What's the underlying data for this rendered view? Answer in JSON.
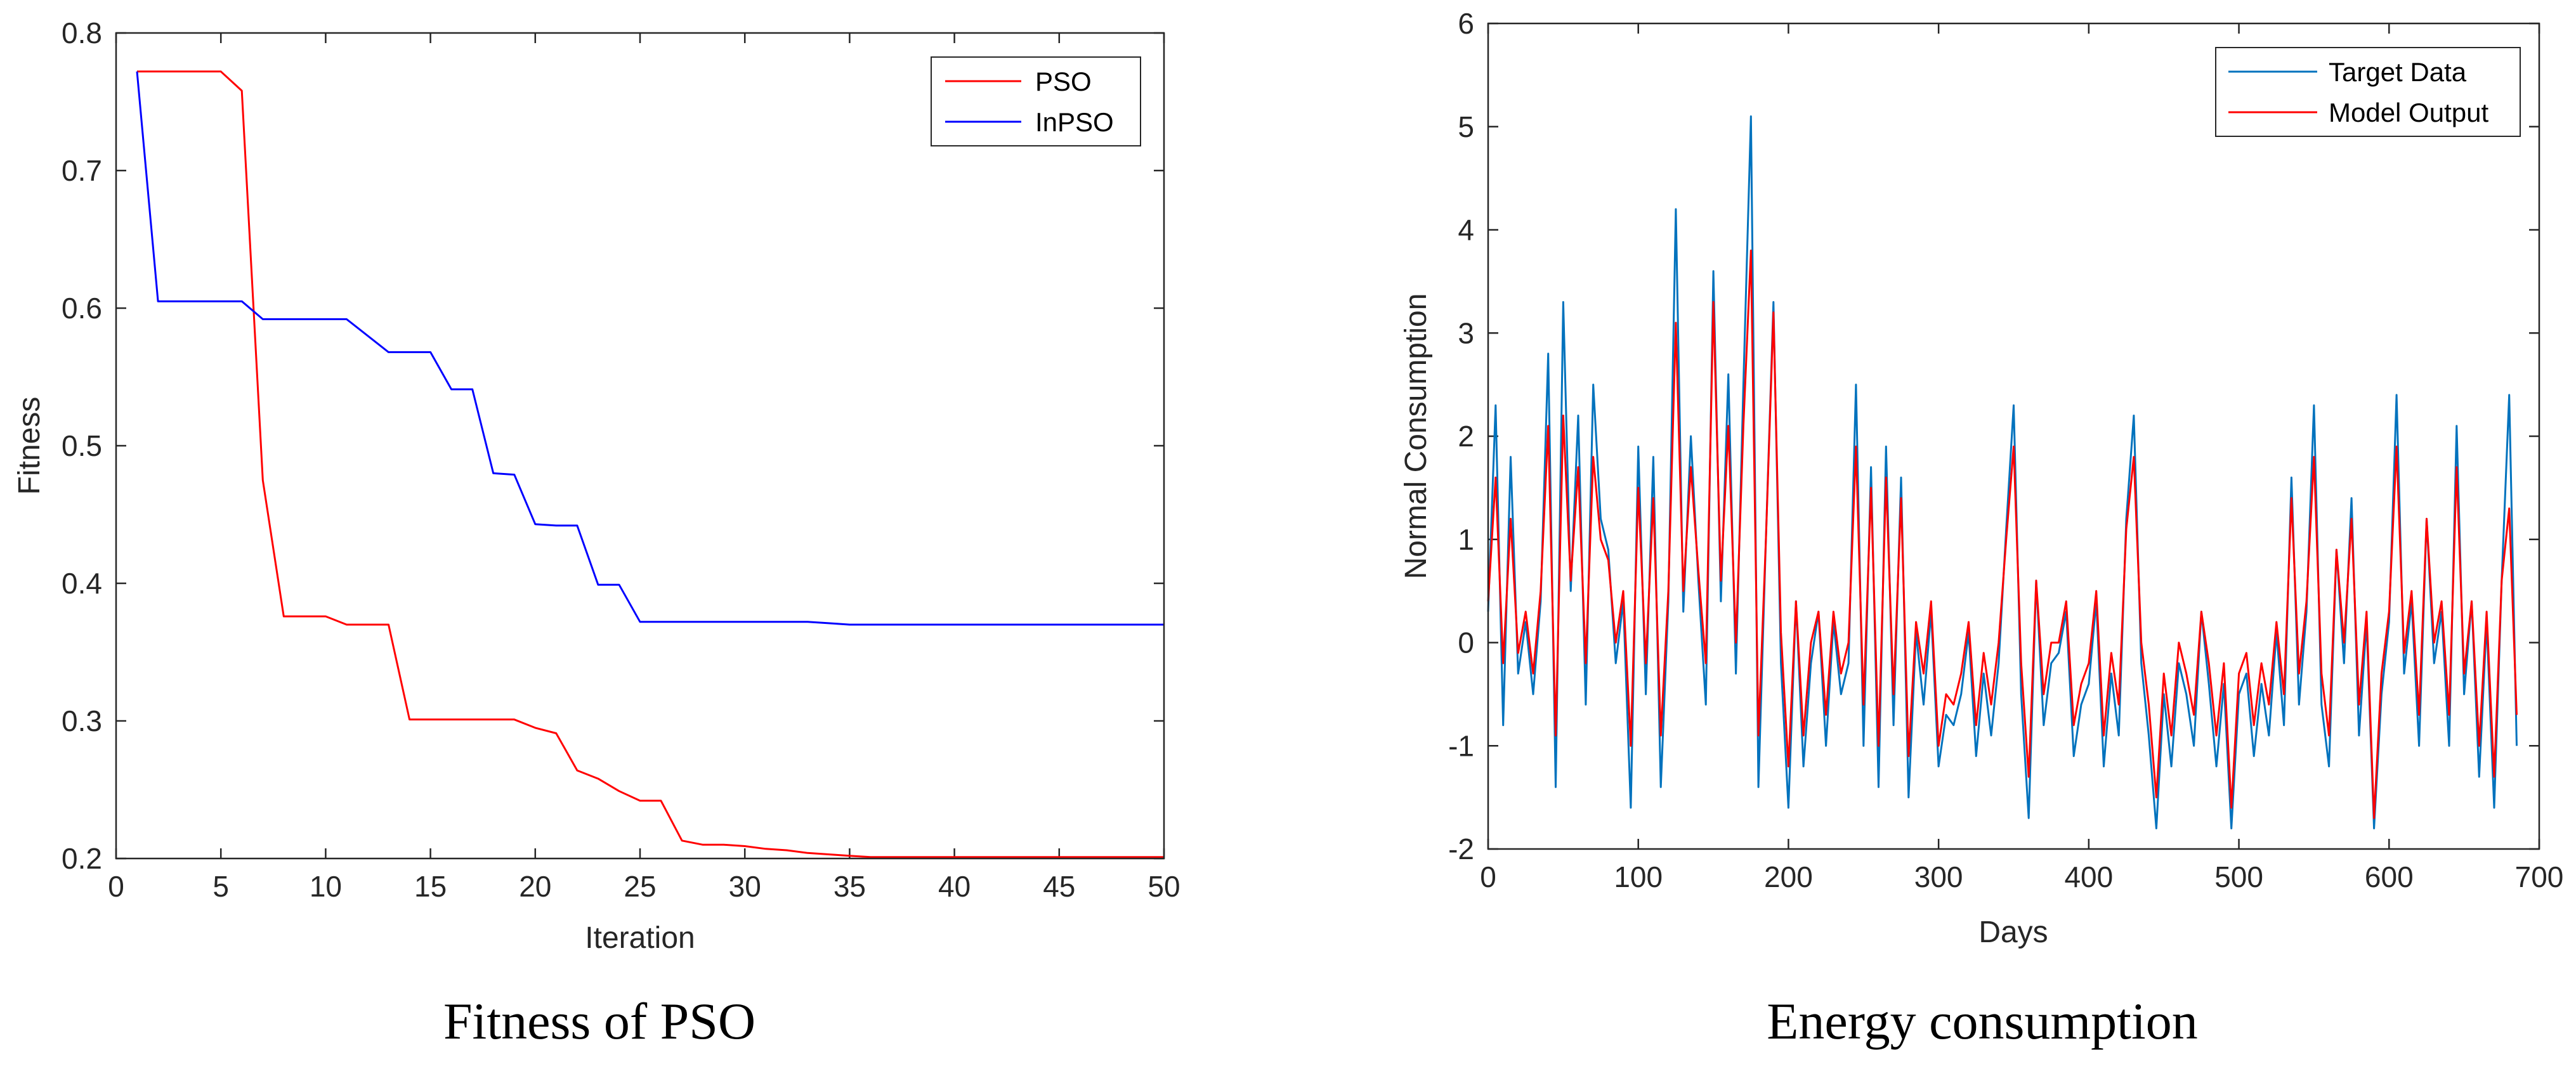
{
  "chart_data": [
    {
      "type": "line",
      "caption": "Fitness of PSO",
      "xlabel": "Iteration",
      "ylabel": "Fitness",
      "xlim": [
        0,
        50
      ],
      "ylim": [
        0.2,
        0.8
      ],
      "xticks": [
        "0",
        "5",
        "10",
        "15",
        "20",
        "25",
        "30",
        "35",
        "40",
        "45",
        "50"
      ],
      "yticks": [
        "0.2",
        "0.3",
        "0.4",
        "0.5",
        "0.6",
        "0.7",
        "0.8"
      ],
      "legend_position": "top-right",
      "series": [
        {
          "name": "PSO",
          "color": "#ff0000",
          "x": [
            1,
            2,
            3,
            4,
            5,
            6,
            7,
            8,
            9,
            10,
            11,
            12,
            13,
            14,
            15,
            16,
            17,
            18,
            19,
            20,
            21,
            22,
            23,
            24,
            25,
            26,
            27,
            28,
            29,
            30,
            31,
            32,
            33,
            34,
            35,
            36,
            37,
            38,
            39,
            40,
            41,
            42,
            43,
            44,
            45,
            46,
            47,
            48,
            49,
            50
          ],
          "y": [
            0.772,
            0.772,
            0.772,
            0.772,
            0.772,
            0.758,
            0.475,
            0.376,
            0.376,
            0.376,
            0.37,
            0.37,
            0.37,
            0.301,
            0.301,
            0.301,
            0.301,
            0.301,
            0.301,
            0.295,
            0.291,
            0.264,
            0.258,
            0.249,
            0.242,
            0.242,
            0.213,
            0.21,
            0.21,
            0.209,
            0.207,
            0.206,
            0.204,
            0.203,
            0.202,
            0.201,
            0.201,
            0.201,
            0.201,
            0.201,
            0.201,
            0.201,
            0.201,
            0.201,
            0.201,
            0.201,
            0.201,
            0.201,
            0.201,
            0.201
          ]
        },
        {
          "name": "InPSO",
          "color": "#0000ff",
          "x": [
            1,
            2,
            3,
            4,
            5,
            6,
            7,
            8,
            9,
            10,
            11,
            12,
            13,
            14,
            15,
            16,
            17,
            18,
            19,
            20,
            21,
            22,
            23,
            24,
            25,
            26,
            27,
            28,
            29,
            30,
            31,
            32,
            33,
            34,
            35,
            36,
            37,
            38,
            39,
            40,
            41,
            42,
            43,
            44,
            45,
            46,
            47,
            48,
            49,
            50
          ],
          "y": [
            0.772,
            0.605,
            0.605,
            0.605,
            0.605,
            0.605,
            0.592,
            0.592,
            0.592,
            0.592,
            0.592,
            0.58,
            0.568,
            0.568,
            0.568,
            0.541,
            0.541,
            0.48,
            0.479,
            0.443,
            0.442,
            0.442,
            0.399,
            0.399,
            0.372,
            0.372,
            0.372,
            0.372,
            0.372,
            0.372,
            0.372,
            0.372,
            0.372,
            0.371,
            0.37,
            0.37,
            0.37,
            0.37,
            0.37,
            0.37,
            0.37,
            0.37,
            0.37,
            0.37,
            0.37,
            0.37,
            0.37,
            0.37,
            0.37,
            0.37
          ]
        }
      ]
    },
    {
      "type": "line",
      "caption": "Energy consumption",
      "xlabel": "Days",
      "ylabel": "Normal Consumption",
      "xlim": [
        0,
        700
      ],
      "ylim": [
        -2,
        6
      ],
      "xticks": [
        "0",
        "100",
        "200",
        "300",
        "400",
        "500",
        "600",
        "700"
      ],
      "yticks": [
        "-2",
        "-1",
        "0",
        "1",
        "2",
        "3",
        "4",
        "5",
        "6"
      ],
      "legend_position": "top-right",
      "series": [
        {
          "name": "Target Data",
          "color": "#0072bd",
          "x": [
            0,
            5,
            10,
            15,
            20,
            25,
            30,
            35,
            40,
            45,
            50,
            55,
            60,
            65,
            70,
            75,
            80,
            85,
            90,
            95,
            100,
            105,
            110,
            115,
            120,
            125,
            130,
            135,
            140,
            145,
            150,
            155,
            160,
            165,
            170,
            175,
            180,
            185,
            190,
            195,
            200,
            205,
            210,
            215,
            220,
            225,
            230,
            235,
            240,
            245,
            250,
            255,
            260,
            265,
            270,
            275,
            280,
            285,
            290,
            295,
            300,
            305,
            310,
            315,
            320,
            325,
            330,
            335,
            340,
            345,
            350,
            355,
            360,
            365,
            370,
            375,
            380,
            385,
            390,
            395,
            400,
            405,
            410,
            415,
            420,
            425,
            430,
            435,
            440,
            445,
            450,
            455,
            460,
            465,
            470,
            475,
            480,
            485,
            490,
            495,
            500,
            505,
            510,
            515,
            520,
            525,
            530,
            535,
            540,
            545,
            550,
            555,
            560,
            565,
            570,
            575,
            580,
            585,
            590,
            595,
            600,
            605,
            610,
            615,
            620,
            625,
            630,
            635,
            640,
            645,
            650,
            655,
            660,
            665,
            670,
            675,
            680,
            685
          ],
          "y": [
            0.3,
            2.3,
            -0.8,
            1.8,
            -0.3,
            0.2,
            -0.5,
            0.4,
            2.8,
            -1.4,
            3.3,
            0.5,
            2.2,
            -0.6,
            2.5,
            1.2,
            0.9,
            -0.2,
            0.4,
            -1.6,
            1.9,
            -0.5,
            1.8,
            -1.4,
            0.4,
            4.2,
            0.3,
            2.0,
            0.6,
            -0.6,
            3.6,
            0.4,
            2.6,
            -0.3,
            2.5,
            5.1,
            -1.4,
            1.0,
            3.3,
            -0.2,
            -1.6,
            0.4,
            -1.2,
            -0.2,
            0.3,
            -1.0,
            0.2,
            -0.5,
            -0.2,
            2.5,
            -1.0,
            1.7,
            -1.4,
            1.9,
            -0.8,
            1.6,
            -1.5,
            0.1,
            -0.6,
            0.3,
            -1.2,
            -0.7,
            -0.8,
            -0.5,
            0.1,
            -1.1,
            -0.3,
            -0.9,
            -0.2,
            1.1,
            2.3,
            -0.5,
            -1.7,
            0.6,
            -0.8,
            -0.2,
            -0.1,
            0.3,
            -1.1,
            -0.6,
            -0.4,
            0.4,
            -1.2,
            -0.3,
            -0.9,
            1.2,
            2.2,
            -0.2,
            -0.9,
            -1.8,
            -0.5,
            -1.2,
            -0.2,
            -0.5,
            -1.0,
            0.3,
            -0.4,
            -1.2,
            -0.4,
            -1.8,
            -0.5,
            -0.3,
            -1.1,
            -0.4,
            -0.9,
            0.1,
            -0.8,
            1.6,
            -0.6,
            0.3,
            2.3,
            -0.6,
            -1.2,
            0.9,
            -0.2,
            1.4,
            -0.9,
            0.2,
            -1.8,
            -0.5,
            0.2,
            2.4,
            -0.3,
            0.4,
            -1.0,
            1.2,
            -0.2,
            0.3,
            -1.0,
            2.1,
            -0.5,
            0.4,
            -1.3,
            0.2,
            -1.6,
            0.6,
            2.4,
            -1.0
          ]
        },
        {
          "name": "Model Output",
          "color": "#ff0000",
          "x": [
            0,
            5,
            10,
            15,
            20,
            25,
            30,
            35,
            40,
            45,
            50,
            55,
            60,
            65,
            70,
            75,
            80,
            85,
            90,
            95,
            100,
            105,
            110,
            115,
            120,
            125,
            130,
            135,
            140,
            145,
            150,
            155,
            160,
            165,
            170,
            175,
            180,
            185,
            190,
            195,
            200,
            205,
            210,
            215,
            220,
            225,
            230,
            235,
            240,
            245,
            250,
            255,
            260,
            265,
            270,
            275,
            280,
            285,
            290,
            295,
            300,
            305,
            310,
            315,
            320,
            325,
            330,
            335,
            340,
            345,
            350,
            355,
            360,
            365,
            370,
            375,
            380,
            385,
            390,
            395,
            400,
            405,
            410,
            415,
            420,
            425,
            430,
            435,
            440,
            445,
            450,
            455,
            460,
            465,
            470,
            475,
            480,
            485,
            490,
            495,
            500,
            505,
            510,
            515,
            520,
            525,
            530,
            535,
            540,
            545,
            550,
            555,
            560,
            565,
            570,
            575,
            580,
            585,
            590,
            595,
            600,
            605,
            610,
            615,
            620,
            625,
            630,
            635,
            640,
            645,
            650,
            655,
            660,
            665,
            670,
            675,
            680,
            685
          ],
          "y": [
            0.4,
            1.6,
            -0.2,
            1.2,
            -0.1,
            0.3,
            -0.3,
            0.5,
            2.1,
            -0.9,
            2.2,
            0.6,
            1.7,
            -0.2,
            1.8,
            1.0,
            0.8,
            0.0,
            0.5,
            -1.0,
            1.5,
            -0.2,
            1.4,
            -0.9,
            0.5,
            3.1,
            0.5,
            1.7,
            0.7,
            -0.2,
            3.3,
            0.6,
            2.1,
            0.0,
            2.1,
            3.8,
            -0.9,
            1.0,
            3.2,
            0.1,
            -1.2,
            0.4,
            -0.9,
            0.0,
            0.3,
            -0.7,
            0.3,
            -0.3,
            0.0,
            1.9,
            -0.6,
            1.5,
            -1.0,
            1.6,
            -0.5,
            1.4,
            -1.1,
            0.2,
            -0.3,
            0.4,
            -1.0,
            -0.5,
            -0.6,
            -0.3,
            0.2,
            -0.8,
            -0.1,
            -0.6,
            0.0,
            1.0,
            1.9,
            -0.2,
            -1.3,
            0.6,
            -0.5,
            0.0,
            0.0,
            0.4,
            -0.8,
            -0.4,
            -0.2,
            0.5,
            -0.9,
            -0.1,
            -0.6,
            1.1,
            1.8,
            0.0,
            -0.6,
            -1.5,
            -0.3,
            -0.9,
            0.0,
            -0.3,
            -0.7,
            0.3,
            -0.2,
            -0.9,
            -0.2,
            -1.6,
            -0.3,
            -0.1,
            -0.8,
            -0.2,
            -0.6,
            0.2,
            -0.5,
            1.4,
            -0.3,
            0.4,
            1.8,
            -0.3,
            -0.9,
            0.9,
            0.0,
            1.2,
            -0.6,
            0.3,
            -1.7,
            -0.3,
            0.3,
            1.9,
            -0.1,
            0.5,
            -0.7,
            1.2,
            0.0,
            0.4,
            -0.7,
            1.7,
            -0.3,
            0.4,
            -1.0,
            0.3,
            -1.3,
            0.6,
            1.3,
            -0.7
          ]
        }
      ]
    }
  ]
}
